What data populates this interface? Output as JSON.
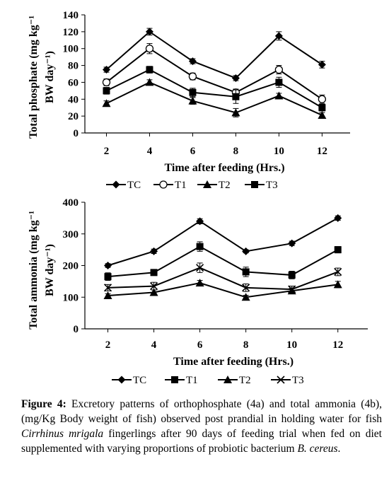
{
  "chart_data": [
    {
      "type": "line",
      "title": "",
      "xlabel": "Time after feeding (Hrs.)",
      "ylabel": "Total phosphate (mg kg⁻¹ BW day⁻¹)",
      "ylabel_lines": [
        "Total phosphate (mg kg⁻¹",
        "BW day⁻¹)"
      ],
      "x": [
        2,
        4,
        6,
        8,
        10,
        12
      ],
      "yticks": [
        0,
        20,
        40,
        60,
        80,
        100,
        120,
        140
      ],
      "ylim": [
        0,
        140
      ],
      "grid": false,
      "legend": "bottom",
      "series": [
        {
          "name": "TC",
          "marker": "diamond",
          "values": [
            75,
            120,
            85,
            65,
            115,
            81
          ],
          "errors": [
            3,
            4,
            3,
            3,
            5,
            4
          ]
        },
        {
          "name": "T1",
          "marker": "open-circle",
          "values": [
            60,
            100,
            67,
            48,
            75,
            40
          ],
          "errors": [
            4,
            6,
            4,
            4,
            5,
            5
          ]
        },
        {
          "name": "T2",
          "marker": "triangle",
          "values": [
            35,
            60,
            38,
            24,
            44,
            21
          ],
          "errors": [
            3,
            3,
            4,
            5,
            3,
            3
          ]
        },
        {
          "name": "T3",
          "marker": "square",
          "values": [
            50,
            75,
            48,
            43,
            60,
            30
          ],
          "errors": [
            4,
            4,
            5,
            8,
            6,
            4
          ]
        }
      ]
    },
    {
      "type": "line",
      "title": "",
      "xlabel": "Time after feeding (Hrs.)",
      "ylabel": "Total ammonia (mg kg⁻¹ BW day⁻¹)",
      "ylabel_lines": [
        "Total ammonia (mg kg⁻¹",
        "BW day⁻¹)"
      ],
      "x": [
        2,
        4,
        6,
        8,
        10,
        12
      ],
      "yticks": [
        0,
        100,
        200,
        300,
        400
      ],
      "ylim": [
        0,
        400
      ],
      "grid": false,
      "legend": "bottom",
      "series": [
        {
          "name": "TC",
          "marker": "diamond",
          "values": [
            200,
            245,
            340,
            245,
            270,
            350
          ],
          "errors": [
            6,
            7,
            8,
            5,
            7,
            7
          ]
        },
        {
          "name": "T1",
          "marker": "square",
          "values": [
            165,
            178,
            260,
            180,
            170,
            250
          ],
          "errors": [
            12,
            8,
            15,
            15,
            12,
            10
          ]
        },
        {
          "name": "T2",
          "marker": "triangle",
          "values": [
            105,
            115,
            145,
            100,
            120,
            140
          ],
          "errors": [
            6,
            8,
            8,
            6,
            8,
            10
          ]
        },
        {
          "name": "T3",
          "marker": "x",
          "values": [
            130,
            135,
            193,
            130,
            125,
            180
          ],
          "errors": [
            10,
            12,
            15,
            12,
            10,
            12
          ]
        }
      ]
    }
  ],
  "caption": {
    "label": "Figure 4:",
    "text1": " Excretory patterns of orthophosphate (4a) and total ammonia (4b), (mg/Kg Body weight of fish) observed post prandial in holding water for fish ",
    "species": "Cirrhinus mrigala",
    "text2": " fingerlings after 90 days of feeding trial when fed on diet supplemented with varying proportions of probiotic bacterium ",
    "bacterium": "B. cereus",
    "text3": "."
  }
}
